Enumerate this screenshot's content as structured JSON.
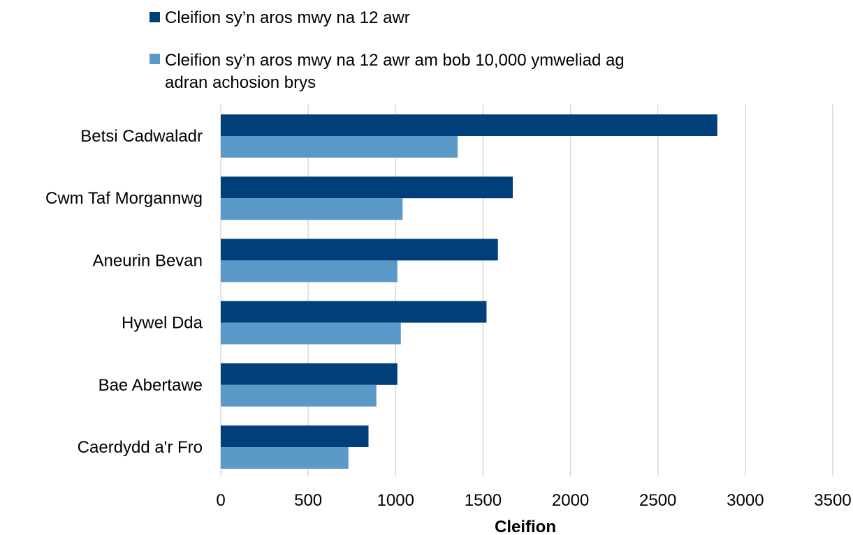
{
  "chart_data": {
    "type": "bar",
    "orientation": "horizontal",
    "categories": [
      "Betsi Cadwaladr",
      "Cwm Taf Morgannwg",
      "Aneurin Bevan",
      "Hywel Dda",
      "Bae Abertawe",
      "Caerdydd a'r Fro"
    ],
    "series": [
      {
        "name": "Cleifion sy’n aros mwy na 12 awr",
        "color": "#003f7a",
        "values": [
          2840,
          1670,
          1585,
          1520,
          1010,
          845
        ]
      },
      {
        "name": "Cleifion sy’n aros mwy na 12 awr am bob 10,000 ymweliad ag adran achosion brys",
        "name_lines": [
          "Cleifion sy’n aros mwy na 12 awr am bob 10,000 ymweliad ag",
          "adran achosion brys"
        ],
        "color": "#5b9ac8",
        "values": [
          1355,
          1040,
          1010,
          1030,
          890,
          730
        ]
      }
    ],
    "xlim": [
      0,
      3500
    ],
    "xticks": [
      0,
      500,
      1000,
      1500,
      2000,
      2500,
      3000,
      3500
    ],
    "xlabel": "Cleifion",
    "ylabel": "",
    "grid": "vertical",
    "legend_position": "top"
  }
}
